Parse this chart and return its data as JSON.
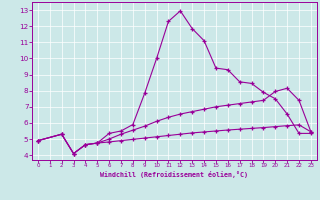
{
  "bg_color": "#cce8e8",
  "line_color": "#990099",
  "xlim": [
    -0.5,
    23.5
  ],
  "ylim": [
    3.7,
    13.5
  ],
  "xticks": [
    0,
    1,
    2,
    3,
    4,
    5,
    6,
    7,
    8,
    9,
    10,
    11,
    12,
    13,
    14,
    15,
    16,
    17,
    18,
    19,
    20,
    21,
    22,
    23
  ],
  "yticks": [
    4,
    5,
    6,
    7,
    8,
    9,
    10,
    11,
    12,
    13
  ],
  "xlabel": "Windchill (Refroidissement éolien,°C)",
  "line1_x": [
    0,
    2,
    3,
    4,
    5,
    6,
    7,
    8,
    9,
    10,
    11,
    12,
    13,
    14,
    15,
    16,
    17,
    18,
    19,
    20,
    21,
    22,
    23
  ],
  "line1_y": [
    4.9,
    5.3,
    4.1,
    4.65,
    4.75,
    5.35,
    5.5,
    5.9,
    7.85,
    10.0,
    12.3,
    12.95,
    11.85,
    11.1,
    9.4,
    9.3,
    8.55,
    8.45,
    7.9,
    7.5,
    6.55,
    5.35,
    5.35
  ],
  "line2_x": [
    0,
    2,
    3,
    4,
    5,
    6,
    7,
    8,
    9,
    10,
    11,
    12,
    13,
    14,
    15,
    16,
    17,
    18,
    19,
    20,
    21,
    22,
    23
  ],
  "line2_y": [
    4.9,
    5.3,
    4.1,
    4.65,
    4.75,
    5.0,
    5.3,
    5.55,
    5.8,
    6.1,
    6.35,
    6.55,
    6.7,
    6.85,
    7.0,
    7.1,
    7.2,
    7.3,
    7.4,
    7.95,
    8.15,
    7.4,
    5.45
  ],
  "line3_x": [
    0,
    2,
    3,
    4,
    5,
    6,
    7,
    8,
    9,
    10,
    11,
    12,
    13,
    14,
    15,
    16,
    17,
    18,
    19,
    20,
    21,
    22,
    23
  ],
  "line3_y": [
    4.9,
    5.3,
    4.1,
    4.65,
    4.75,
    4.82,
    4.9,
    4.98,
    5.06,
    5.14,
    5.22,
    5.3,
    5.38,
    5.44,
    5.5,
    5.56,
    5.61,
    5.66,
    5.71,
    5.77,
    5.83,
    5.88,
    5.45
  ]
}
